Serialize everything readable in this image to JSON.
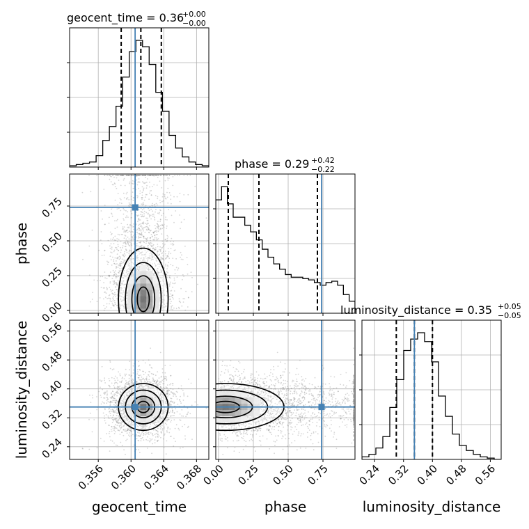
{
  "chart_data": {
    "type": "corner",
    "parameters": [
      "geocent_time",
      "phase",
      "luminosity_distance"
    ],
    "axis_labels": [
      "geocent_time",
      "phase",
      "luminosity_distance"
    ],
    "titles": [
      {
        "param": "geocent_time",
        "text": "geocent_time = 0.36",
        "plus": "+0.00",
        "minus": "−0.00"
      },
      {
        "param": "phase",
        "text": "phase = 0.29",
        "plus": "+0.42",
        "minus": "−0.22"
      },
      {
        "param": "luminosity_distance",
        "text": "luminosity_distance = 0.35",
        "plus": "+0.05",
        "minus": "−0.05"
      }
    ],
    "ranges": [
      [
        0.3525,
        0.3695
      ],
      [
        -0.02,
        0.98
      ],
      [
        0.205,
        0.59
      ]
    ],
    "tick_values": [
      [
        0.356,
        0.36,
        0.364,
        0.368
      ],
      [
        0.0,
        0.25,
        0.5,
        0.75
      ],
      [
        0.24,
        0.32,
        0.4,
        0.48,
        0.56
      ]
    ],
    "tick_labels": [
      [
        "0.356",
        "0.360",
        "0.364",
        "0.368"
      ],
      [
        "0.00",
        "0.25",
        "0.50",
        "0.75"
      ],
      [
        "0.24",
        "0.32",
        "0.40",
        "0.48",
        "0.56"
      ]
    ],
    "truths": [
      0.3605,
      0.74,
      0.35
    ],
    "quantiles": [
      [
        0.3588,
        0.3612,
        0.3637
      ],
      [
        0.07,
        0.29,
        0.71
      ],
      [
        0.3,
        0.35,
        0.4
      ]
    ],
    "histograms": [
      {
        "param": "geocent_time",
        "bin_edges_range": [
          0.3525,
          0.3695
        ],
        "counts": [
          0.01,
          0.02,
          0.03,
          0.04,
          0.09,
          0.21,
          0.32,
          0.48,
          0.71,
          0.91,
          1.0,
          0.95,
          0.81,
          0.59,
          0.44,
          0.25,
          0.15,
          0.08,
          0.04,
          0.02,
          0.01
        ]
      },
      {
        "param": "phase",
        "bin_edges_range": [
          -0.02,
          0.98
        ],
        "counts": [
          0.85,
          0.95,
          0.82,
          0.72,
          0.72,
          0.66,
          0.61,
          0.55,
          0.48,
          0.42,
          0.37,
          0.33,
          0.29,
          0.27,
          0.27,
          0.26,
          0.25,
          0.23,
          0.21,
          0.23,
          0.24,
          0.21,
          0.14,
          0.09
        ]
      },
      {
        "param": "luminosity_distance",
        "bin_edges_range": [
          0.205,
          0.59
        ],
        "counts": [
          0.02,
          0.04,
          0.09,
          0.18,
          0.41,
          0.63,
          0.86,
          0.95,
          1.0,
          0.93,
          0.77,
          0.5,
          0.34,
          0.2,
          0.11,
          0.07,
          0.04,
          0.02,
          0.01,
          0.0
        ]
      }
    ],
    "grid": true,
    "colors": {
      "truth": "#4682b4",
      "hist": "#000000",
      "scatter": "#888888"
    }
  }
}
